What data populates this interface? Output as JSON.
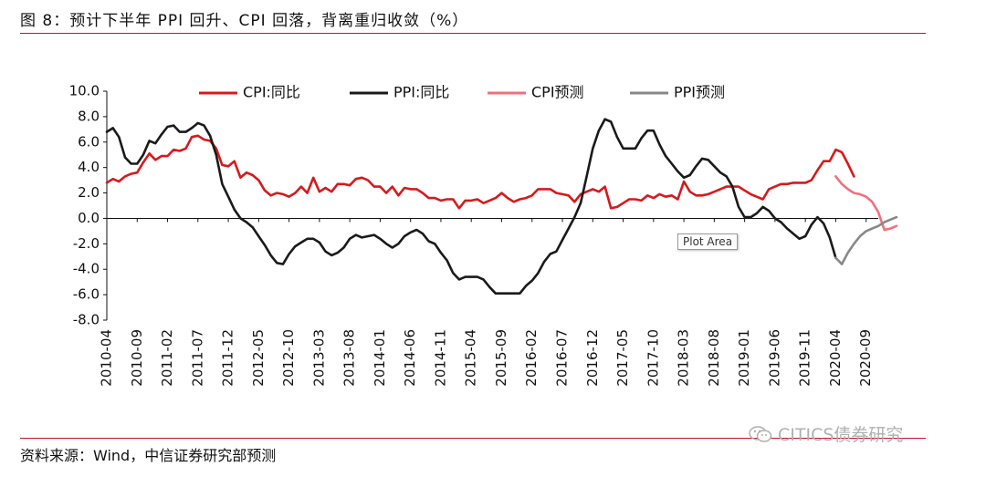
{
  "header": {
    "title": "图 8：预计下半年 PPI 回升、CPI 回落，背离重归收敛（%）"
  },
  "footer": {
    "source": "资料来源：Wind，中信证券研究部预测",
    "watermark": "CITICS债券研究"
  },
  "tooltip": {
    "text": "Plot Area"
  },
  "colors": {
    "cpi": "#d7191c",
    "ppi": "#1a1a1a",
    "cpi_forecast": "#f0707a",
    "ppi_forecast": "#888888",
    "rule": "#c8102e"
  },
  "chart_data": {
    "type": "line",
    "title": "",
    "xlabel": "",
    "ylabel": "",
    "ylim": [
      -8.0,
      10.0
    ],
    "yticks": [
      "10.0",
      "8.0",
      "6.0",
      "4.0",
      "2.0",
      "0.0",
      "-2.0",
      "-4.0",
      "-6.0",
      "-8.0"
    ],
    "xticks": [
      "2010-04",
      "2010-09",
      "2011-02",
      "2011-07",
      "2011-12",
      "2012-05",
      "2012-10",
      "2013-03",
      "2013-08",
      "2014-01",
      "2014-06",
      "2014-11",
      "2015-04",
      "2015-09",
      "2016-02",
      "2016-07",
      "2016-12",
      "2017-05",
      "2017-10",
      "2018-03",
      "2018-08",
      "2019-01",
      "2019-06",
      "2019-11",
      "2020-04",
      "2020-09"
    ],
    "x_start": "2010-04",
    "legend_position": "top",
    "grid": false,
    "series": [
      {
        "name": "CPI:同比",
        "start": "2010-04",
        "values": [
          2.8,
          3.1,
          2.9,
          3.3,
          3.5,
          3.6,
          4.4,
          5.1,
          4.6,
          4.9,
          4.9,
          5.4,
          5.3,
          5.5,
          6.4,
          6.5,
          6.2,
          6.1,
          5.5,
          4.2,
          4.1,
          4.5,
          3.2,
          3.6,
          3.4,
          3.0,
          2.2,
          1.8,
          2.0,
          1.9,
          1.7,
          2.0,
          2.5,
          2.0,
          3.2,
          2.1,
          2.4,
          2.1,
          2.7,
          2.7,
          2.6,
          3.1,
          3.2,
          3.0,
          2.5,
          2.5,
          2.0,
          2.5,
          1.8,
          2.4,
          2.3,
          2.3,
          2.0,
          1.6,
          1.6,
          1.4,
          1.5,
          1.5,
          0.8,
          1.4,
          1.4,
          1.5,
          1.2,
          1.4,
          1.6,
          2.0,
          1.6,
          1.3,
          1.5,
          1.6,
          1.8,
          2.3,
          2.3,
          2.3,
          2.0,
          1.9,
          1.8,
          1.3,
          1.9,
          2.1,
          2.3,
          2.1,
          2.5,
          0.8,
          0.9,
          1.2,
          1.5,
          1.5,
          1.4,
          1.8,
          1.6,
          1.9,
          1.7,
          1.8,
          1.5,
          2.9,
          2.1,
          1.8,
          1.8,
          1.9,
          2.1,
          2.3,
          2.5,
          2.5,
          2.5,
          2.2,
          1.9,
          1.7,
          1.5,
          2.3,
          2.5,
          2.7,
          2.7,
          2.8,
          2.8,
          2.8,
          3.0,
          3.8,
          4.5,
          4.5,
          5.4,
          5.2,
          4.3,
          3.3
        ]
      },
      {
        "name": "PPI:同比",
        "start": "2010-04",
        "values": [
          6.8,
          7.1,
          6.4,
          4.8,
          4.3,
          4.3,
          5.0,
          6.1,
          5.9,
          6.6,
          7.2,
          7.3,
          6.8,
          6.8,
          7.1,
          7.5,
          7.3,
          6.5,
          5.0,
          2.7,
          1.7,
          0.7,
          0.0,
          -0.3,
          -0.7,
          -1.4,
          -2.1,
          -2.9,
          -3.5,
          -3.6,
          -2.8,
          -2.2,
          -1.9,
          -1.6,
          -1.6,
          -1.9,
          -2.6,
          -2.9,
          -2.7,
          -2.3,
          -1.6,
          -1.3,
          -1.5,
          -1.4,
          -1.3,
          -1.6,
          -2.0,
          -2.3,
          -2.0,
          -1.4,
          -1.1,
          -0.9,
          -1.2,
          -1.8,
          -2.0,
          -2.7,
          -3.3,
          -4.3,
          -4.8,
          -4.6,
          -4.6,
          -4.6,
          -4.8,
          -5.4,
          -5.9,
          -5.9,
          -5.9,
          -5.9,
          -5.9,
          -5.3,
          -4.9,
          -4.3,
          -3.4,
          -2.8,
          -2.6,
          -1.7,
          -0.8,
          0.1,
          1.2,
          3.3,
          5.5,
          6.9,
          7.8,
          7.6,
          6.4,
          5.5,
          5.5,
          5.5,
          6.3,
          6.9,
          6.9,
          5.8,
          4.9,
          4.3,
          3.7,
          3.2,
          3.4,
          4.1,
          4.7,
          4.6,
          4.1,
          3.6,
          3.3,
          2.5,
          0.9,
          0.1,
          0.1,
          0.4,
          0.9,
          0.6,
          0.0,
          -0.3,
          -0.8,
          -1.2,
          -1.6,
          -1.4,
          -0.5,
          0.1,
          -0.4,
          -1.5,
          -3.1
        ]
      },
      {
        "name": "CPI预测",
        "start": "2020-04",
        "values": [
          3.3,
          2.7,
          2.3,
          2.0,
          1.9,
          1.7,
          1.3,
          0.5,
          -0.9,
          -0.8,
          -0.6
        ]
      },
      {
        "name": "PPI预测",
        "start": "2020-04",
        "values": [
          -3.1,
          -3.6,
          -2.7,
          -2.0,
          -1.4,
          -1.0,
          -0.8,
          -0.6,
          -0.3,
          -0.1,
          0.1
        ]
      }
    ]
  }
}
